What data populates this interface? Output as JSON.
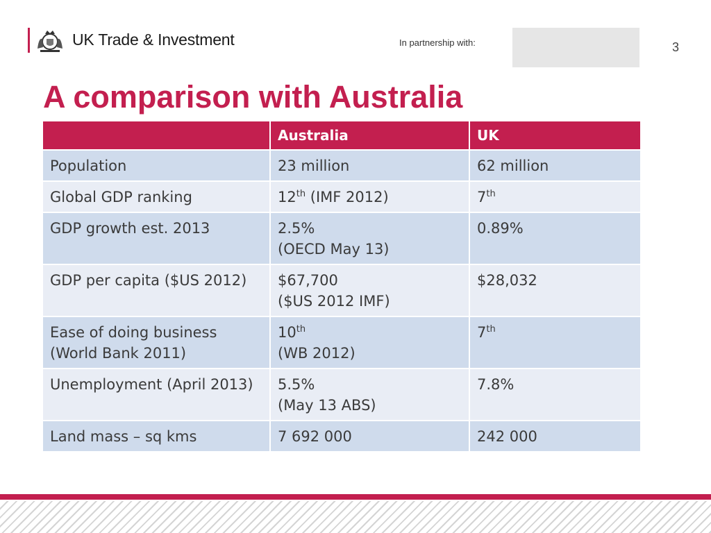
{
  "header": {
    "logo_text": "UK Trade & Investment",
    "partnership_label": "In partnership with:",
    "page_number": "3"
  },
  "title": "A comparison with Australia",
  "table": {
    "headers": [
      "",
      "Australia",
      "UK"
    ],
    "rows": [
      {
        "label": "Population",
        "australia": "23 million",
        "uk": "62 million"
      },
      {
        "label": "Global GDP ranking",
        "australia": "12",
        "australia_sup": "th",
        "australia_note": " (IMF 2012)",
        "uk": "7",
        "uk_sup": "th"
      },
      {
        "label": "GDP growth est. 2013",
        "australia": "2.5%",
        "australia_note": "(OECD May 13)",
        "uk": "0.89%"
      },
      {
        "label": "GDP per capita ($US 2012)",
        "australia": "$67,700",
        "australia_note": "($US 2012 IMF)",
        "uk": "$28,032"
      },
      {
        "label": "Ease of doing business (World Bank 2011)",
        "australia": "10",
        "australia_sup": "th",
        "australia_note": "(WB 2012)",
        "uk": "7",
        "uk_sup": "th"
      },
      {
        "label": "Unemployment (April 2013)",
        "australia": "5.5%",
        "australia_note": "(May 13 ABS)",
        "uk": "7.8%"
      },
      {
        "label": "Land mass – sq kms",
        "australia": "7 692 000",
        "uk": "242 000"
      }
    ]
  },
  "colors": {
    "accent": "#c31f4f",
    "row_dark": "#cfdbec",
    "row_light": "#e9edf5"
  }
}
